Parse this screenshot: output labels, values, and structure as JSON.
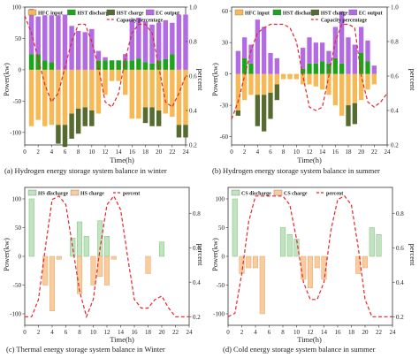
{
  "chart_data": [
    {
      "type": "bar",
      "caption": "(a) Hydrogen energy storage system balance in winter",
      "xlabel": "Time(h)",
      "ylabel": "Power(kw)",
      "y2label": "percent",
      "xlim": [
        0,
        24
      ],
      "xticks": [
        0,
        2,
        4,
        6,
        8,
        10,
        12,
        14,
        16,
        18,
        20,
        22,
        24
      ],
      "ylim": [
        -120,
        100
      ],
      "yticks": [
        100,
        50,
        0,
        -50,
        -100
      ],
      "y2lim": [
        0.2,
        1.0
      ],
      "y2ticks": [
        0.2,
        0.4,
        0.6,
        0.8,
        1.0
      ],
      "legend": [
        "HFC input",
        "HST discharge",
        "HST charge",
        "EC output",
        "Capacity percentage"
      ],
      "x": [
        1,
        2,
        3,
        4,
        5,
        6,
        7,
        8,
        9,
        10,
        11,
        12,
        13,
        14,
        15,
        16,
        17,
        18,
        19,
        20,
        21,
        22,
        23,
        24
      ],
      "series": [
        {
          "name": "HFC input",
          "color": "#f7b955",
          "values": [
            -90,
            -80,
            -90,
            -88,
            -88,
            -88,
            -70,
            -62,
            -60,
            -65,
            -70,
            -40,
            -18,
            -18,
            -40,
            -78,
            -78,
            -60,
            -60,
            -65,
            -70,
            -75,
            -88,
            -88
          ]
        },
        {
          "name": "HST discharge",
          "color": "#1ea31e",
          "values": [
            25,
            25,
            15,
            12,
            0,
            0,
            0,
            0,
            0,
            0,
            15,
            15,
            15,
            15,
            15,
            15,
            18,
            12,
            10,
            15,
            17,
            25,
            0,
            0
          ]
        },
        {
          "name": "HST charge",
          "color": "#556b2f",
          "values": [
            0,
            0,
            0,
            0,
            -30,
            -35,
            -40,
            -40,
            -30,
            -25,
            0,
            0,
            0,
            0,
            0,
            0,
            0,
            -25,
            -30,
            -25,
            0,
            0,
            -20,
            -20
          ]
        },
        {
          "name": "EC output",
          "color": "#b36be3",
          "values": [
            72,
            60,
            72,
            75,
            87,
            88,
            70,
            62,
            60,
            65,
            15,
            5,
            0,
            0,
            10,
            65,
            65,
            65,
            62,
            60,
            62,
            50,
            88,
            88
          ]
        }
      ],
      "line": {
        "name": "Capacity percentage",
        "color": "#e8242b",
        "x": [
          0,
          1,
          2,
          3,
          4,
          5,
          6,
          7,
          8,
          9,
          10,
          11,
          12,
          13,
          14,
          15,
          16,
          17,
          18,
          19,
          20,
          21,
          22,
          23,
          24
        ],
        "values": [
          0.95,
          0.85,
          0.7,
          0.55,
          0.45,
          0.5,
          0.65,
          0.8,
          0.9,
          0.9,
          0.8,
          0.65,
          0.45,
          0.42,
          0.5,
          0.7,
          0.85,
          0.9,
          0.9,
          0.85,
          0.65,
          0.45,
          0.42,
          0.5,
          0.6
        ]
      }
    },
    {
      "type": "bar",
      "caption": "(b) Hydrogen energy storage system balance in summer",
      "xlabel": "Time(h)",
      "ylabel": "Power(kw)",
      "y2label": "percent",
      "xlim": [
        0,
        24
      ],
      "xticks": [
        0,
        2,
        4,
        6,
        8,
        10,
        12,
        14,
        16,
        18,
        20,
        22,
        24
      ],
      "ylim": [
        -68,
        64
      ],
      "yticks": [
        60,
        30,
        0,
        -30,
        -60
      ],
      "y2lim": [
        0.2,
        1.0
      ],
      "y2ticks": [
        0.2,
        0.4,
        0.6,
        0.8,
        1.0
      ],
      "legend": [
        "HFC input",
        "HST discharge",
        "HST charge",
        "EC output",
        "Capacity percentage"
      ],
      "x": [
        1,
        2,
        3,
        4,
        5,
        6,
        7,
        8,
        9,
        10,
        11,
        12,
        13,
        14,
        15,
        16,
        17,
        18,
        19,
        20,
        21,
        22
      ],
      "series": [
        {
          "name": "HFC input",
          "color": "#f7b955",
          "values": [
            -35,
            -25,
            -20,
            -20,
            -20,
            -18,
            -10,
            -5,
            -5,
            -5,
            -10,
            -10,
            -12,
            -15,
            -20,
            -30,
            -40,
            -30,
            -28,
            -25,
            -15,
            -10
          ]
        },
        {
          "name": "HST discharge",
          "color": "#1ea31e",
          "values": [
            0,
            15,
            10,
            0,
            0,
            0,
            0,
            0,
            0,
            0,
            5,
            10,
            10,
            12,
            10,
            15,
            10,
            0,
            0,
            20,
            12,
            0
          ]
        },
        {
          "name": "HST charge",
          "color": "#556b2f",
          "values": [
            -5,
            0,
            0,
            -30,
            -35,
            -25,
            -15,
            0,
            0,
            0,
            0,
            0,
            0,
            0,
            0,
            0,
            0,
            -20,
            -20,
            0,
            0,
            0
          ]
        },
        {
          "name": "EC output",
          "color": "#b36be3",
          "values": [
            22,
            20,
            18,
            52,
            45,
            20,
            15,
            0,
            0,
            0,
            20,
            25,
            20,
            18,
            12,
            30,
            50,
            35,
            28,
            25,
            20,
            8
          ]
        }
      ],
      "line": {
        "name": "Capacity percentage",
        "color": "#e8242b",
        "x": [
          0,
          1,
          2,
          3,
          4,
          5,
          6,
          7,
          8,
          9,
          10,
          11,
          12,
          13,
          14,
          15,
          16,
          17,
          18,
          19,
          20,
          21,
          22,
          23,
          24
        ],
        "values": [
          0.35,
          0.45,
          0.6,
          0.75,
          0.85,
          0.88,
          0.9,
          0.9,
          0.9,
          0.88,
          0.8,
          0.6,
          0.42,
          0.4,
          0.42,
          0.6,
          0.8,
          0.9,
          0.9,
          0.88,
          0.6,
          0.45,
          0.42,
          0.45,
          0.5
        ]
      }
    },
    {
      "type": "bar",
      "caption": "(c) Thermal energy storage system balance in Winter",
      "xlabel": "Time(h)",
      "ylabel": "Power(kw)",
      "y2label": "percent",
      "xlim": [
        0,
        24
      ],
      "xticks": [
        0,
        2,
        4,
        6,
        8,
        10,
        12,
        14,
        16,
        18,
        20,
        22,
        24
      ],
      "ylim": [
        -120,
        120
      ],
      "yticks": [
        100,
        50,
        0,
        -50,
        -100
      ],
      "y2lim": [
        0.15,
        0.95
      ],
      "y2ticks": [
        0.2,
        0.4,
        0.6,
        0.8
      ],
      "legend": [
        "HS discharge",
        "HS charge",
        "percent"
      ],
      "x": [
        1,
        2,
        3,
        4,
        5,
        6,
        7,
        8,
        9,
        10,
        11,
        12,
        13,
        14,
        15,
        16,
        17,
        18,
        19,
        20,
        21,
        22
      ],
      "series": [
        {
          "name": "HS discharge",
          "color": "#bfe4bf",
          "values": [
            100,
            0,
            0,
            0,
            0,
            0,
            32,
            60,
            35,
            0,
            62,
            35,
            0,
            0,
            0,
            0,
            0,
            0,
            0,
            25,
            0,
            0
          ]
        },
        {
          "name": "HS charge",
          "color": "#f8cc9f",
          "values": [
            0,
            0,
            -50,
            -95,
            -5,
            0,
            0,
            -65,
            0,
            -50,
            -35,
            -50,
            -5,
            0,
            0,
            0,
            0,
            -30,
            0,
            0,
            0,
            0
          ]
        }
      ],
      "line": {
        "name": "percent",
        "color": "#e8242b",
        "x": [
          0,
          1,
          2,
          3,
          4,
          5,
          6,
          7,
          8,
          9,
          10,
          11,
          12,
          13,
          14,
          15,
          16,
          17,
          18,
          19,
          20,
          21,
          22,
          23,
          24
        ],
        "values": [
          0.2,
          0.2,
          0.3,
          0.6,
          0.88,
          0.9,
          0.85,
          0.6,
          0.35,
          0.2,
          0.3,
          0.6,
          0.85,
          0.9,
          0.82,
          0.55,
          0.3,
          0.25,
          0.25,
          0.3,
          0.32,
          0.25,
          0.2,
          0.2,
          0.2
        ]
      }
    },
    {
      "type": "bar",
      "caption": "(d) Cold energy storage system balance in summer",
      "xlabel": "Time(h)",
      "ylabel": "Power(kw)",
      "y2label": "percent",
      "xlim": [
        0,
        24
      ],
      "xticks": [
        0,
        2,
        4,
        6,
        8,
        10,
        12,
        14,
        16,
        18,
        20,
        22,
        24
      ],
      "ylim": [
        -120,
        120
      ],
      "yticks": [
        100,
        50,
        0,
        -50,
        -100
      ],
      "y2lim": [
        0.15,
        0.95
      ],
      "y2ticks": [
        0.2,
        0.4,
        0.6,
        0.8
      ],
      "legend": [
        "CS discharge",
        "CS charge",
        "percent"
      ],
      "x": [
        1,
        2,
        3,
        4,
        5,
        6,
        7,
        8,
        9,
        10,
        11,
        12,
        13,
        14,
        15,
        16,
        17,
        18,
        19,
        20,
        21,
        22
      ],
      "series": [
        {
          "name": "CS discharge",
          "color": "#bfe4bf",
          "values": [
            100,
            0,
            0,
            0,
            0,
            0,
            0,
            50,
            38,
            30,
            0,
            0,
            0,
            0,
            0,
            0,
            0,
            0,
            0,
            0,
            50,
            38
          ]
        },
        {
          "name": "CS charge",
          "color": "#f8cc9f",
          "values": [
            0,
            -30,
            -20,
            -20,
            -100,
            0,
            0,
            0,
            0,
            0,
            -40,
            -55,
            -20,
            -40,
            0,
            0,
            0,
            0,
            -30,
            -20,
            0,
            0
          ]
        }
      ],
      "line": {
        "name": "percent",
        "color": "#e8242b",
        "x": [
          0,
          1,
          2,
          3,
          4,
          5,
          6,
          7,
          8,
          9,
          10,
          11,
          12,
          13,
          14,
          15,
          16,
          17,
          18,
          19,
          20,
          21,
          22,
          23,
          24
        ],
        "values": [
          0.2,
          0.22,
          0.45,
          0.75,
          0.9,
          0.9,
          0.9,
          0.9,
          0.9,
          0.85,
          0.65,
          0.4,
          0.3,
          0.3,
          0.4,
          0.7,
          0.88,
          0.9,
          0.85,
          0.6,
          0.3,
          0.2,
          0.2,
          0.2,
          0.2
        ]
      }
    }
  ]
}
